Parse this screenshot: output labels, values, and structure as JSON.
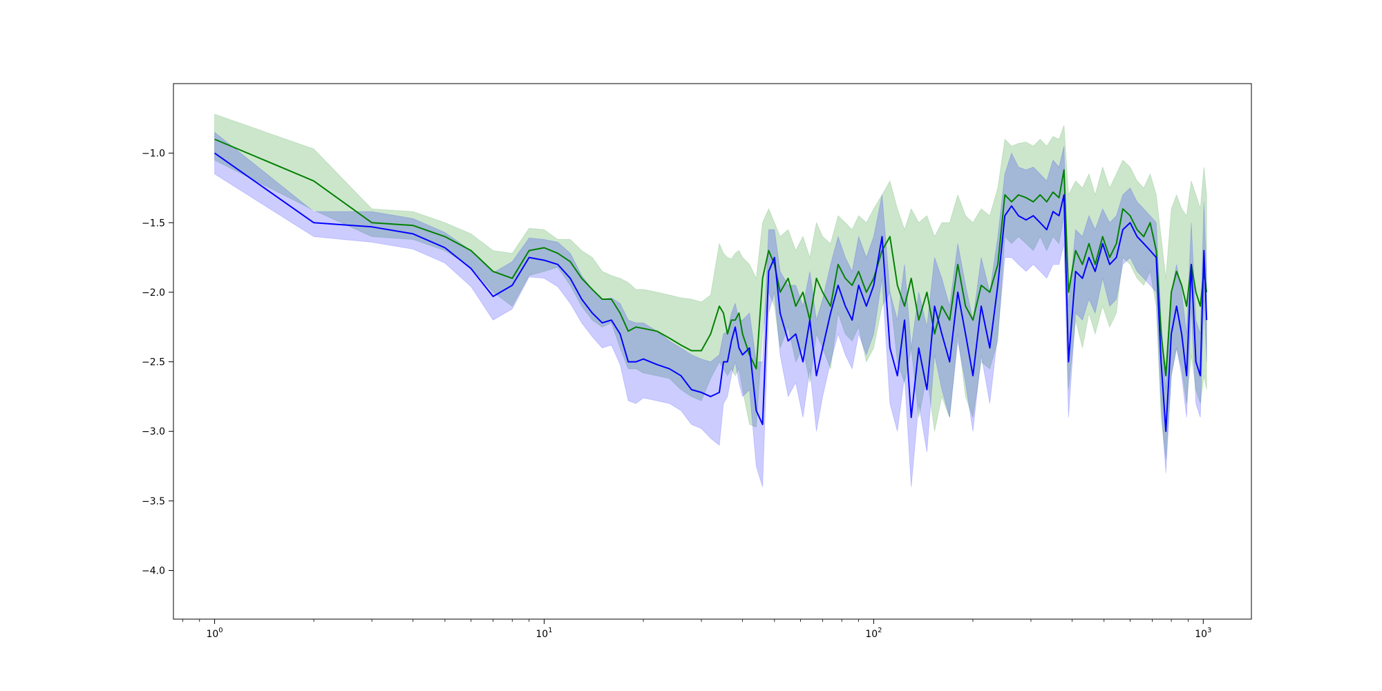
{
  "chart_data": {
    "type": "line",
    "title": "",
    "xlabel": "",
    "ylabel": "",
    "xscale": "log",
    "xlim": [
      0.75,
      1400
    ],
    "ylim": [
      -4.35,
      -0.5
    ],
    "grid": false,
    "legend": "none",
    "x_ticks": [
      {
        "value": 1,
        "base": "10",
        "exp": "0"
      },
      {
        "value": 10,
        "base": "10",
        "exp": "1"
      },
      {
        "value": 100,
        "base": "10",
        "exp": "2"
      },
      {
        "value": 1000,
        "base": "10",
        "exp": "3"
      }
    ],
    "y_ticks": [
      {
        "value": -1.0,
        "label": "−1.0"
      },
      {
        "value": -1.5,
        "label": "−1.5"
      },
      {
        "value": -2.0,
        "label": "−2.0"
      },
      {
        "value": -2.5,
        "label": "−2.5"
      },
      {
        "value": -3.0,
        "label": "−3.0"
      },
      {
        "value": -3.5,
        "label": "−3.5"
      },
      {
        "value": -4.0,
        "label": "−4.0"
      }
    ],
    "series": [
      {
        "color": "#008000",
        "band_color": "#008000",
        "band_opacity": 0.2,
        "x": [
          1,
          2,
          3,
          4,
          5,
          6,
          7,
          8,
          9,
          10,
          11,
          12,
          13,
          14,
          15,
          16,
          17,
          18,
          19,
          20,
          22,
          24,
          26,
          28,
          30,
          32,
          34,
          35,
          36,
          37,
          38,
          39,
          40,
          42,
          44,
          46,
          48,
          50,
          52,
          55,
          58,
          61,
          64,
          67,
          70,
          74,
          78,
          82,
          86,
          90,
          95,
          100,
          106,
          112,
          118,
          124,
          130,
          137,
          145,
          153,
          161,
          170,
          180,
          190,
          200,
          212,
          225,
          238,
          250,
          262,
          275,
          290,
          305,
          320,
          335,
          350,
          365,
          378,
          390,
          410,
          430,
          450,
          470,
          495,
          520,
          545,
          570,
          600,
          630,
          660,
          690,
          720,
          745,
          770,
          800,
          830,
          860,
          890,
          920,
          950,
          980,
          1005,
          1024
        ],
        "mean": [
          -0.9,
          -1.2,
          -1.5,
          -1.52,
          -1.6,
          -1.7,
          -1.85,
          -1.9,
          -1.7,
          -1.68,
          -1.72,
          -1.78,
          -1.9,
          -1.98,
          -2.05,
          -2.05,
          -2.15,
          -2.28,
          -2.25,
          -2.26,
          -2.28,
          -2.33,
          -2.38,
          -2.42,
          -2.42,
          -2.3,
          -2.1,
          -2.15,
          -2.3,
          -2.2,
          -2.2,
          -2.15,
          -2.3,
          -2.45,
          -2.55,
          -1.9,
          -1.7,
          -1.8,
          -2.0,
          -1.9,
          -2.1,
          -2.0,
          -2.2,
          -1.9,
          -2.0,
          -2.1,
          -1.8,
          -1.9,
          -1.95,
          -1.85,
          -2.0,
          -1.9,
          -1.7,
          -1.6,
          -1.95,
          -2.1,
          -1.9,
          -2.2,
          -2.0,
          -2.3,
          -2.1,
          -2.2,
          -1.8,
          -2.1,
          -2.2,
          -1.95,
          -2.0,
          -1.8,
          -1.3,
          -1.35,
          -1.3,
          -1.32,
          -1.35,
          -1.3,
          -1.35,
          -1.28,
          -1.32,
          -1.12,
          -2.0,
          -1.7,
          -1.8,
          -1.65,
          -1.8,
          -1.6,
          -1.75,
          -1.65,
          -1.4,
          -1.45,
          -1.55,
          -1.6,
          -1.5,
          -1.7,
          -2.3,
          -2.6,
          -2.0,
          -1.85,
          -1.95,
          -2.1,
          -1.8,
          -2.0,
          -2.1,
          -1.85,
          -2.0
        ],
        "upper": [
          -0.72,
          -0.97,
          -1.4,
          -1.42,
          -1.5,
          -1.58,
          -1.7,
          -1.72,
          -1.54,
          -1.55,
          -1.62,
          -1.62,
          -1.7,
          -1.75,
          -1.85,
          -1.88,
          -1.9,
          -1.93,
          -1.98,
          -1.98,
          -2.0,
          -2.02,
          -2.04,
          -2.05,
          -2.07,
          -2.02,
          -1.65,
          -1.72,
          -1.75,
          -1.76,
          -1.72,
          -1.7,
          -1.75,
          -1.8,
          -1.9,
          -1.5,
          -1.4,
          -1.5,
          -1.6,
          -1.55,
          -1.7,
          -1.6,
          -1.75,
          -1.5,
          -1.6,
          -1.65,
          -1.45,
          -1.5,
          -1.55,
          -1.45,
          -1.5,
          -1.4,
          -1.3,
          -1.2,
          -1.4,
          -1.55,
          -1.4,
          -1.5,
          -1.45,
          -1.6,
          -1.5,
          -1.5,
          -1.3,
          -1.45,
          -1.5,
          -1.4,
          -1.45,
          -1.25,
          -0.9,
          -0.95,
          -0.93,
          -0.92,
          -0.95,
          -0.9,
          -0.95,
          -0.88,
          -0.9,
          -0.8,
          -1.3,
          -1.2,
          -1.25,
          -1.15,
          -1.3,
          -1.1,
          -1.25,
          -1.15,
          -1.05,
          -1.1,
          -1.2,
          -1.25,
          -1.15,
          -1.3,
          -1.6,
          -1.9,
          -1.4,
          -1.3,
          -1.4,
          -1.45,
          -1.2,
          -1.3,
          -1.4,
          -1.1,
          -1.3
        ],
        "lower": [
          -1.05,
          -1.41,
          -1.6,
          -1.62,
          -1.7,
          -1.82,
          -2.0,
          -2.1,
          -1.88,
          -1.85,
          -1.82,
          -1.95,
          -2.1,
          -2.2,
          -2.25,
          -2.22,
          -2.4,
          -2.55,
          -2.55,
          -2.58,
          -2.6,
          -2.62,
          -2.7,
          -2.75,
          -2.78,
          -2.62,
          -2.5,
          -2.55,
          -2.6,
          -2.55,
          -2.6,
          -2.55,
          -2.7,
          -2.95,
          -2.97,
          -2.3,
          -2.0,
          -2.1,
          -2.4,
          -2.25,
          -2.5,
          -2.4,
          -2.65,
          -2.3,
          -2.4,
          -2.55,
          -2.15,
          -2.3,
          -2.35,
          -2.25,
          -2.5,
          -2.4,
          -2.1,
          -2.0,
          -2.5,
          -2.65,
          -2.4,
          -2.9,
          -2.6,
          -3.0,
          -2.75,
          -2.9,
          -2.3,
          -2.75,
          -2.9,
          -2.5,
          -2.55,
          -2.35,
          -1.6,
          -1.65,
          -1.6,
          -1.65,
          -1.7,
          -1.6,
          -1.7,
          -1.6,
          -1.65,
          -1.45,
          -2.7,
          -2.2,
          -2.4,
          -2.15,
          -2.3,
          -2.1,
          -2.25,
          -2.15,
          -1.75,
          -1.8,
          -1.9,
          -1.95,
          -1.85,
          -2.1,
          -2.9,
          -3.2,
          -2.6,
          -2.4,
          -2.55,
          -2.8,
          -2.45,
          -2.7,
          -2.8,
          -2.6,
          -2.7
        ]
      },
      {
        "color": "#0000ff",
        "band_color": "#0000ff",
        "band_opacity": 0.2,
        "x": [
          1,
          2,
          3,
          4,
          5,
          6,
          7,
          8,
          9,
          10,
          11,
          12,
          13,
          14,
          15,
          16,
          17,
          18,
          19,
          20,
          22,
          24,
          26,
          28,
          30,
          32,
          34,
          35,
          36,
          37,
          38,
          39,
          40,
          42,
          44,
          46,
          48,
          50,
          52,
          55,
          58,
          61,
          64,
          67,
          70,
          74,
          78,
          82,
          86,
          90,
          95,
          100,
          106,
          112,
          118,
          124,
          130,
          137,
          145,
          153,
          161,
          170,
          180,
          190,
          200,
          212,
          225,
          238,
          250,
          262,
          275,
          290,
          305,
          320,
          335,
          350,
          365,
          378,
          390,
          410,
          430,
          450,
          470,
          495,
          520,
          545,
          570,
          600,
          630,
          660,
          690,
          720,
          745,
          770,
          800,
          830,
          860,
          890,
          920,
          950,
          980,
          1005,
          1024
        ],
        "mean": [
          -1.0,
          -1.5,
          -1.53,
          -1.58,
          -1.68,
          -1.83,
          -2.03,
          -1.95,
          -1.75,
          -1.77,
          -1.8,
          -1.9,
          -2.05,
          -2.15,
          -2.22,
          -2.2,
          -2.3,
          -2.5,
          -2.5,
          -2.48,
          -2.52,
          -2.55,
          -2.6,
          -2.7,
          -2.72,
          -2.75,
          -2.72,
          -2.5,
          -2.5,
          -2.35,
          -2.25,
          -2.4,
          -2.45,
          -2.4,
          -2.85,
          -2.95,
          -1.85,
          -1.75,
          -2.15,
          -2.35,
          -2.3,
          -2.5,
          -2.2,
          -2.6,
          -2.4,
          -2.15,
          -1.95,
          -2.1,
          -2.2,
          -1.95,
          -2.1,
          -1.95,
          -1.6,
          -2.4,
          -2.6,
          -2.2,
          -2.9,
          -2.4,
          -2.7,
          -2.1,
          -2.3,
          -2.5,
          -2.0,
          -2.3,
          -2.6,
          -2.1,
          -2.4,
          -1.95,
          -1.45,
          -1.38,
          -1.45,
          -1.48,
          -1.45,
          -1.5,
          -1.55,
          -1.42,
          -1.45,
          -1.3,
          -2.5,
          -1.85,
          -1.9,
          -1.75,
          -1.85,
          -1.65,
          -1.8,
          -1.75,
          -1.55,
          -1.5,
          -1.6,
          -1.65,
          -1.7,
          -1.75,
          -2.5,
          -3.0,
          -2.3,
          -2.1,
          -2.3,
          -2.6,
          -1.8,
          -2.5,
          -2.6,
          -1.7,
          -2.2
        ],
        "upper": [
          -0.85,
          -1.42,
          -1.42,
          -1.47,
          -1.57,
          -1.7,
          -1.86,
          -1.78,
          -1.61,
          -1.62,
          -1.64,
          -1.72,
          -1.88,
          -1.98,
          -2.05,
          -2.04,
          -2.08,
          -2.2,
          -2.22,
          -2.22,
          -2.28,
          -2.35,
          -2.4,
          -2.45,
          -2.48,
          -2.5,
          -2.45,
          -2.3,
          -2.28,
          -2.15,
          -2.08,
          -2.2,
          -2.2,
          -2.15,
          -2.5,
          -2.5,
          -1.55,
          -1.55,
          -1.85,
          -1.95,
          -1.95,
          -2.1,
          -1.85,
          -2.2,
          -2.05,
          -1.8,
          -1.6,
          -1.75,
          -1.85,
          -1.6,
          -1.75,
          -1.6,
          -1.3,
          -2.0,
          -2.2,
          -1.8,
          -2.4,
          -2.0,
          -2.25,
          -1.75,
          -1.9,
          -2.1,
          -1.65,
          -1.95,
          -2.2,
          -1.75,
          -2.0,
          -1.6,
          -1.15,
          -1.0,
          -1.1,
          -1.12,
          -1.1,
          -1.15,
          -1.2,
          -1.05,
          -1.1,
          -0.95,
          -2.1,
          -1.55,
          -1.6,
          -1.45,
          -1.55,
          -1.4,
          -1.5,
          -1.45,
          -1.3,
          -1.25,
          -1.35,
          -1.4,
          -1.45,
          -1.5,
          -2.2,
          -2.7,
          -2.0,
          -1.8,
          -2.0,
          -2.3,
          -1.5,
          -2.2,
          -2.3,
          -1.35,
          -1.9
        ],
        "lower": [
          -1.15,
          -1.6,
          -1.64,
          -1.69,
          -1.79,
          -1.96,
          -2.2,
          -2.12,
          -1.89,
          -1.9,
          -1.96,
          -2.08,
          -2.22,
          -2.32,
          -2.4,
          -2.38,
          -2.52,
          -2.78,
          -2.8,
          -2.76,
          -2.78,
          -2.8,
          -2.85,
          -2.95,
          -2.98,
          -3.05,
          -3.1,
          -2.8,
          -2.75,
          -2.6,
          -2.5,
          -2.65,
          -2.75,
          -2.7,
          -3.25,
          -3.4,
          -2.15,
          -2.0,
          -2.45,
          -2.75,
          -2.65,
          -2.9,
          -2.55,
          -3.0,
          -2.75,
          -2.5,
          -2.3,
          -2.45,
          -2.55,
          -2.3,
          -2.45,
          -2.3,
          -1.9,
          -2.8,
          -3.0,
          -2.6,
          -3.4,
          -2.8,
          -3.15,
          -2.45,
          -2.7,
          -2.9,
          -2.35,
          -2.65,
          -3.0,
          -2.45,
          -2.8,
          -2.3,
          -1.75,
          -1.75,
          -1.8,
          -1.85,
          -1.8,
          -1.85,
          -1.9,
          -1.8,
          -1.8,
          -1.65,
          -2.9,
          -2.15,
          -2.2,
          -2.05,
          -2.15,
          -1.9,
          -2.1,
          -2.05,
          -1.8,
          -1.75,
          -1.85,
          -1.9,
          -1.95,
          -2.0,
          -2.8,
          -3.3,
          -2.6,
          -2.4,
          -2.6,
          -2.9,
          -2.1,
          -2.8,
          -2.9,
          -2.05,
          -2.5
        ]
      }
    ]
  }
}
